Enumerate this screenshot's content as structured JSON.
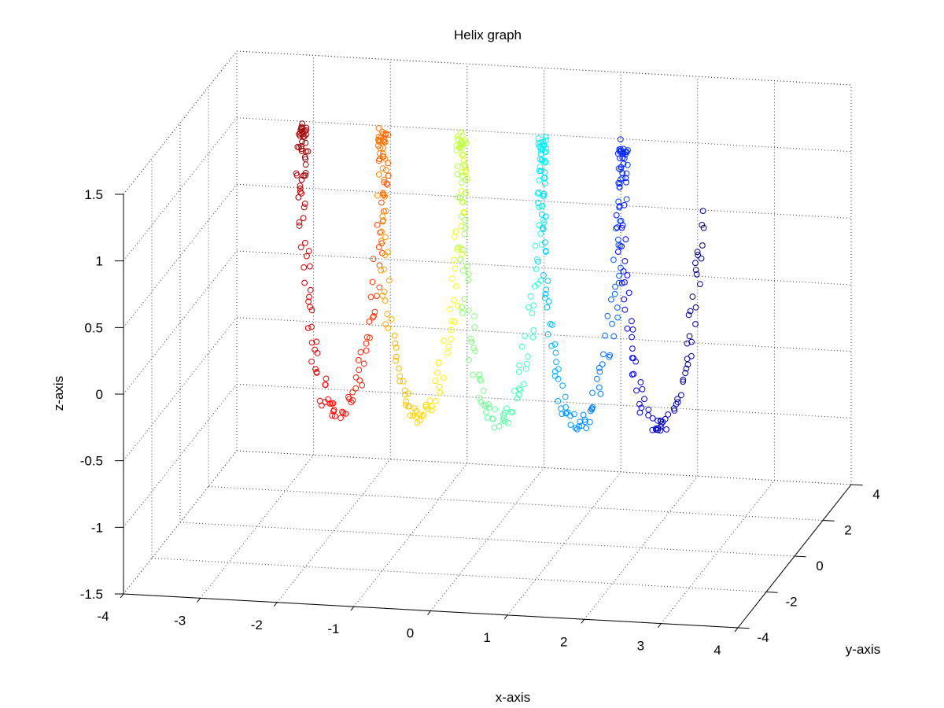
{
  "chart_data": {
    "type": "scatter3d",
    "title": "Helix graph",
    "xlabel": "x-axis",
    "ylabel": "y-axis",
    "zlabel": "z-axis",
    "xlim": [
      -4,
      4
    ],
    "ylim": [
      -4,
      4
    ],
    "zlim": [
      -1.5,
      1.5
    ],
    "xticks": [
      "-4",
      "-3",
      "-2",
      "-1",
      "0",
      "1",
      "2",
      "3",
      "4"
    ],
    "yticks": [
      "-4",
      "-2",
      "0",
      "2",
      "4"
    ],
    "zticks": [
      "-1.5",
      "-1",
      "-0.5",
      "0",
      "0.5",
      "1",
      "1.5"
    ],
    "grid": true,
    "marker": "open circle",
    "colormap": "jet",
    "series": [
      {
        "description": "noisy helix coil about the x-axis, 5 turns, radius ~1.1, points coloured by x (jet colormap)",
        "x_range": [
          -2.6,
          2.6
        ],
        "turns": 5,
        "radius": 1.1,
        "n_points": 600
      }
    ],
    "colors": {
      "jet_stops": [
        "#00008f",
        "#0000ff",
        "#00ffff",
        "#ffff00",
        "#ff0000",
        "#800000"
      ]
    }
  }
}
